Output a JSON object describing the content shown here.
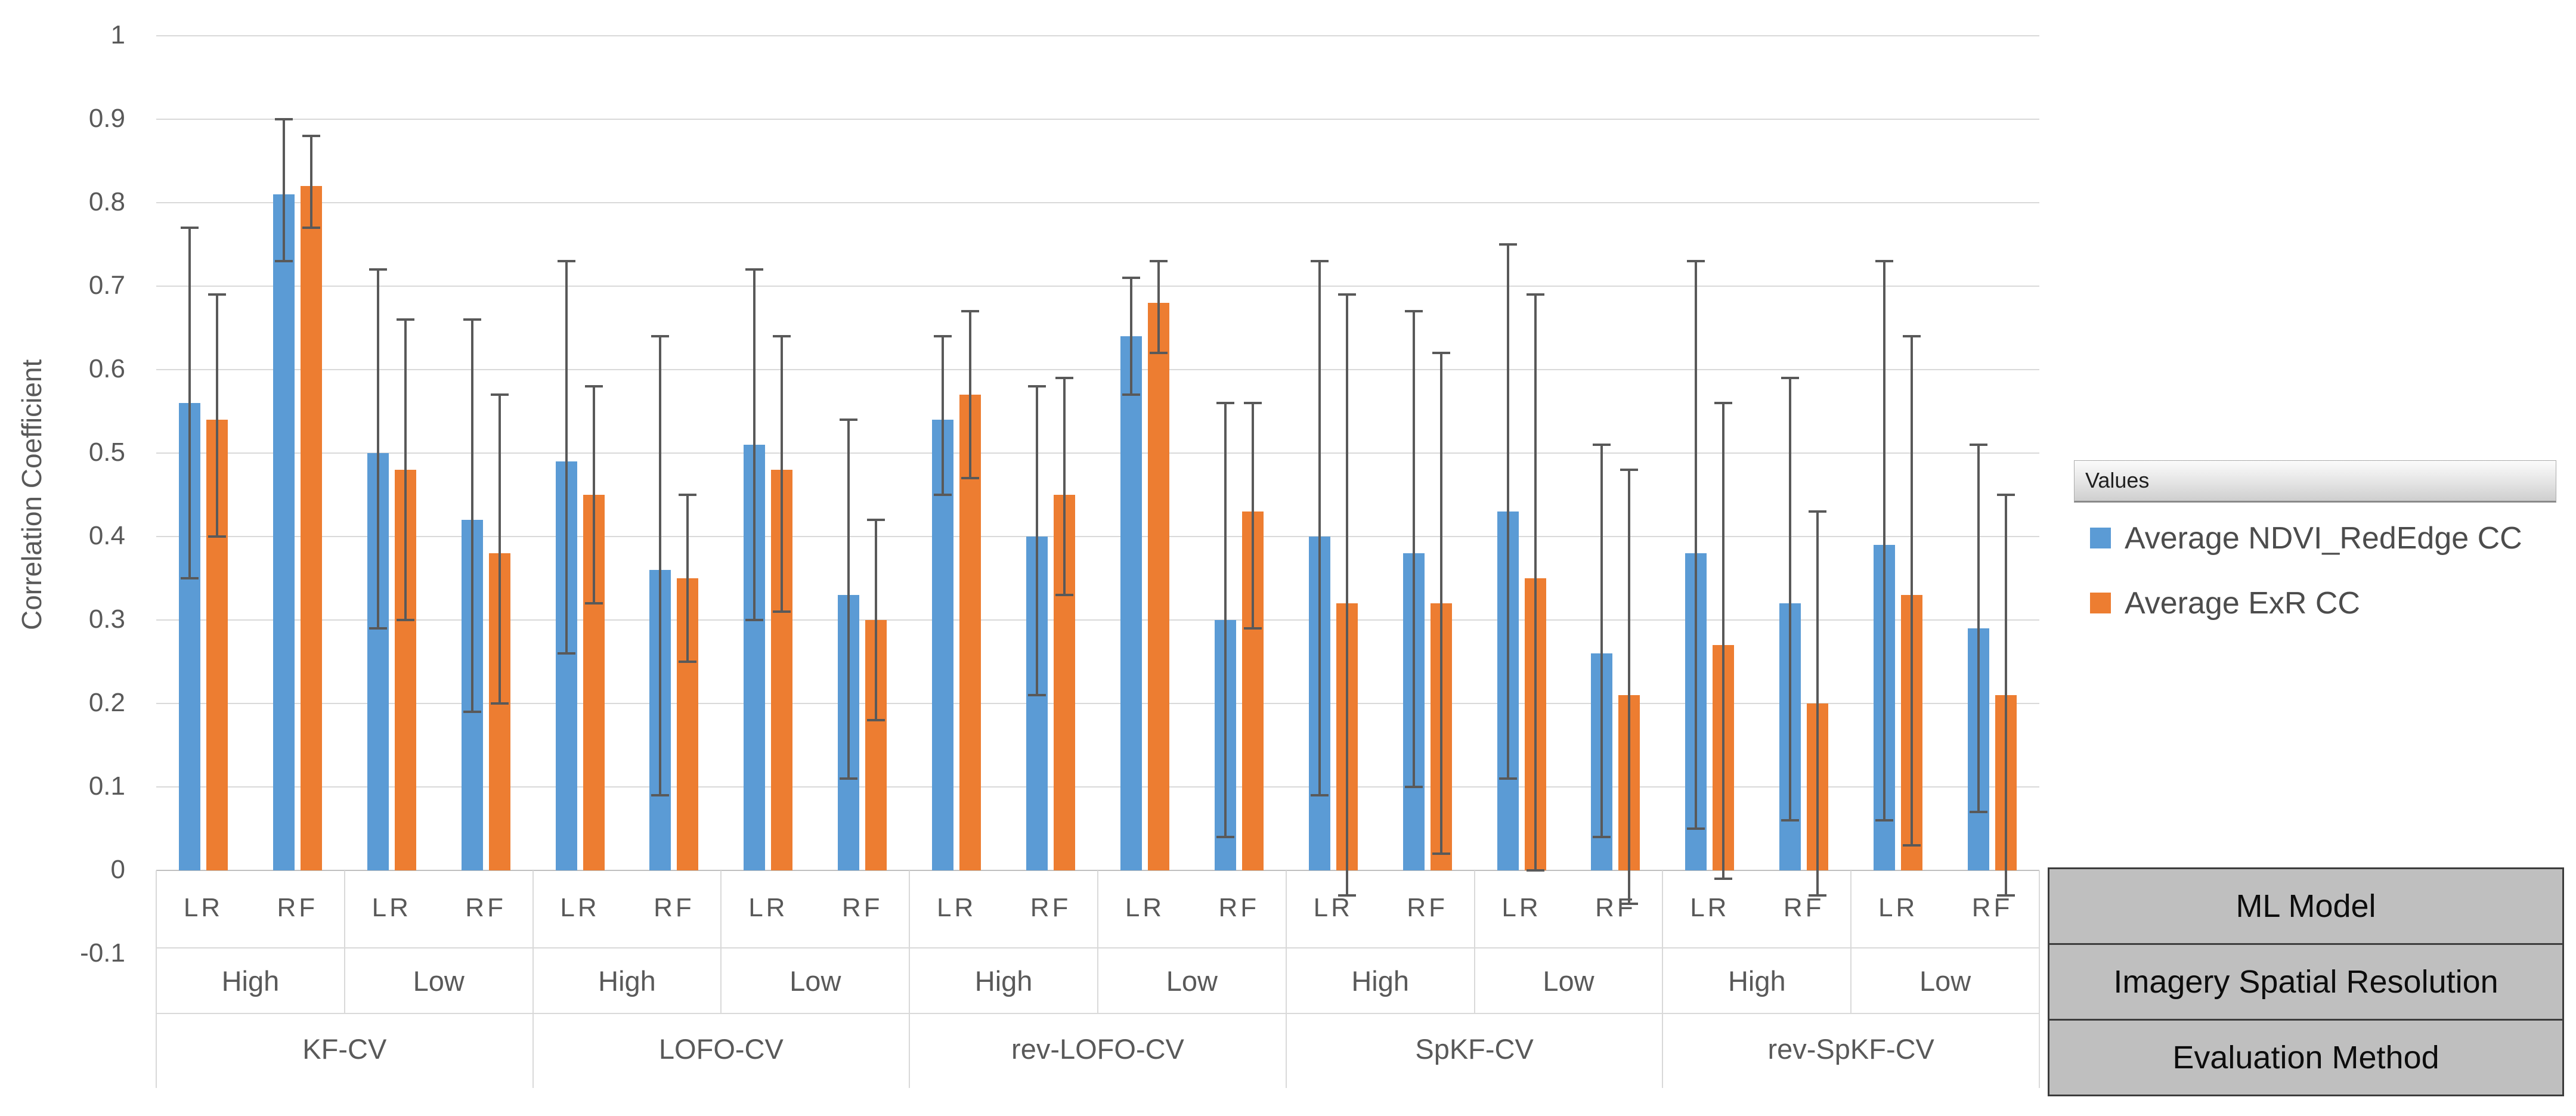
{
  "chart_data": {
    "type": "bar",
    "title": "",
    "xlabel": "",
    "ylabel": "Correlation Coefficient",
    "ylim": [
      -0.1,
      1
    ],
    "ytick_step": 0.1,
    "ytick_labels": [
      "1",
      "0.9",
      "0.8",
      "0.7",
      "0.6",
      "0.5",
      "0.4",
      "0.3",
      "0.2",
      "0.1",
      "0",
      "-0.1"
    ],
    "grid": true,
    "legend_position": "right",
    "legend_header": "Values",
    "error_bars": true,
    "series": [
      {
        "name": "Average NDVI_RedEdge CC",
        "color": "#5B9BD5"
      },
      {
        "name": "Average ExR CC",
        "color": "#ED7D31"
      }
    ],
    "axis_field_buttons": [
      "ML Model",
      "Imagery Spatial Resolution",
      "Evaluation Method"
    ],
    "category_levels": [
      "ML Model",
      "Imagery Spatial Resolution",
      "Evaluation Method"
    ],
    "groups": [
      {
        "method": "KF-CV",
        "resolution": "High",
        "model": "LR",
        "values": [
          0.56,
          0.54
        ],
        "errors": [
          [
            0.35,
            0.77
          ],
          [
            0.4,
            0.69
          ]
        ]
      },
      {
        "method": "KF-CV",
        "resolution": "High",
        "model": "RF",
        "values": [
          0.81,
          0.82
        ],
        "errors": [
          [
            0.73,
            0.9
          ],
          [
            0.77,
            0.88
          ]
        ]
      },
      {
        "method": "KF-CV",
        "resolution": "Low",
        "model": "LR",
        "values": [
          0.5,
          0.48
        ],
        "errors": [
          [
            0.29,
            0.72
          ],
          [
            0.3,
            0.66
          ]
        ]
      },
      {
        "method": "KF-CV",
        "resolution": "Low",
        "model": "RF",
        "values": [
          0.42,
          0.38
        ],
        "errors": [
          [
            0.19,
            0.66
          ],
          [
            0.2,
            0.57
          ]
        ]
      },
      {
        "method": "LOFO-CV",
        "resolution": "High",
        "model": "LR",
        "values": [
          0.49,
          0.45
        ],
        "errors": [
          [
            0.26,
            0.73
          ],
          [
            0.32,
            0.58
          ]
        ]
      },
      {
        "method": "LOFO-CV",
        "resolution": "High",
        "model": "RF",
        "values": [
          0.36,
          0.35
        ],
        "errors": [
          [
            0.09,
            0.64
          ],
          [
            0.25,
            0.45
          ]
        ]
      },
      {
        "method": "LOFO-CV",
        "resolution": "Low",
        "model": "LR",
        "values": [
          0.51,
          0.48
        ],
        "errors": [
          [
            0.3,
            0.72
          ],
          [
            0.31,
            0.64
          ]
        ]
      },
      {
        "method": "LOFO-CV",
        "resolution": "Low",
        "model": "RF",
        "values": [
          0.33,
          0.3
        ],
        "errors": [
          [
            0.11,
            0.54
          ],
          [
            0.18,
            0.42
          ]
        ]
      },
      {
        "method": "rev-LOFO-CV",
        "resolution": "High",
        "model": "LR",
        "values": [
          0.54,
          0.57
        ],
        "errors": [
          [
            0.45,
            0.64
          ],
          [
            0.47,
            0.67
          ]
        ]
      },
      {
        "method": "rev-LOFO-CV",
        "resolution": "High",
        "model": "RF",
        "values": [
          0.4,
          0.45
        ],
        "errors": [
          [
            0.21,
            0.58
          ],
          [
            0.33,
            0.59
          ]
        ]
      },
      {
        "method": "rev-LOFO-CV",
        "resolution": "Low",
        "model": "LR",
        "values": [
          0.64,
          0.68
        ],
        "errors": [
          [
            0.57,
            0.71
          ],
          [
            0.62,
            0.73
          ]
        ]
      },
      {
        "method": "rev-LOFO-CV",
        "resolution": "Low",
        "model": "RF",
        "values": [
          0.3,
          0.43
        ],
        "errors": [
          [
            0.04,
            0.56
          ],
          [
            0.29,
            0.56
          ]
        ]
      },
      {
        "method": "SpKF-CV",
        "resolution": "High",
        "model": "LR",
        "values": [
          0.4,
          0.32
        ],
        "errors": [
          [
            0.09,
            0.73
          ],
          [
            -0.03,
            0.69
          ]
        ]
      },
      {
        "method": "SpKF-CV",
        "resolution": "High",
        "model": "RF",
        "values": [
          0.38,
          0.32
        ],
        "errors": [
          [
            0.1,
            0.67
          ],
          [
            0.02,
            0.62
          ]
        ]
      },
      {
        "method": "SpKF-CV",
        "resolution": "Low",
        "model": "LR",
        "values": [
          0.43,
          0.35
        ],
        "errors": [
          [
            0.11,
            0.75
          ],
          [
            0.0,
            0.69
          ]
        ]
      },
      {
        "method": "SpKF-CV",
        "resolution": "Low",
        "model": "RF",
        "values": [
          0.26,
          0.21
        ],
        "errors": [
          [
            0.04,
            0.51
          ],
          [
            -0.04,
            0.48
          ]
        ]
      },
      {
        "method": "rev-SpKF-CV",
        "resolution": "High",
        "model": "LR",
        "values": [
          0.38,
          0.27
        ],
        "errors": [
          [
            0.05,
            0.73
          ],
          [
            -0.01,
            0.56
          ]
        ]
      },
      {
        "method": "rev-SpKF-CV",
        "resolution": "High",
        "model": "RF",
        "values": [
          0.32,
          0.2
        ],
        "errors": [
          [
            0.06,
            0.59
          ],
          [
            -0.03,
            0.43
          ]
        ]
      },
      {
        "method": "rev-SpKF-CV",
        "resolution": "Low",
        "model": "LR",
        "values": [
          0.39,
          0.33
        ],
        "errors": [
          [
            0.06,
            0.73
          ],
          [
            0.03,
            0.64
          ]
        ]
      },
      {
        "method": "rev-SpKF-CV",
        "resolution": "Low",
        "model": "RF",
        "values": [
          0.29,
          0.21
        ],
        "errors": [
          [
            0.07,
            0.51
          ],
          [
            -0.03,
            0.45
          ]
        ]
      }
    ]
  }
}
